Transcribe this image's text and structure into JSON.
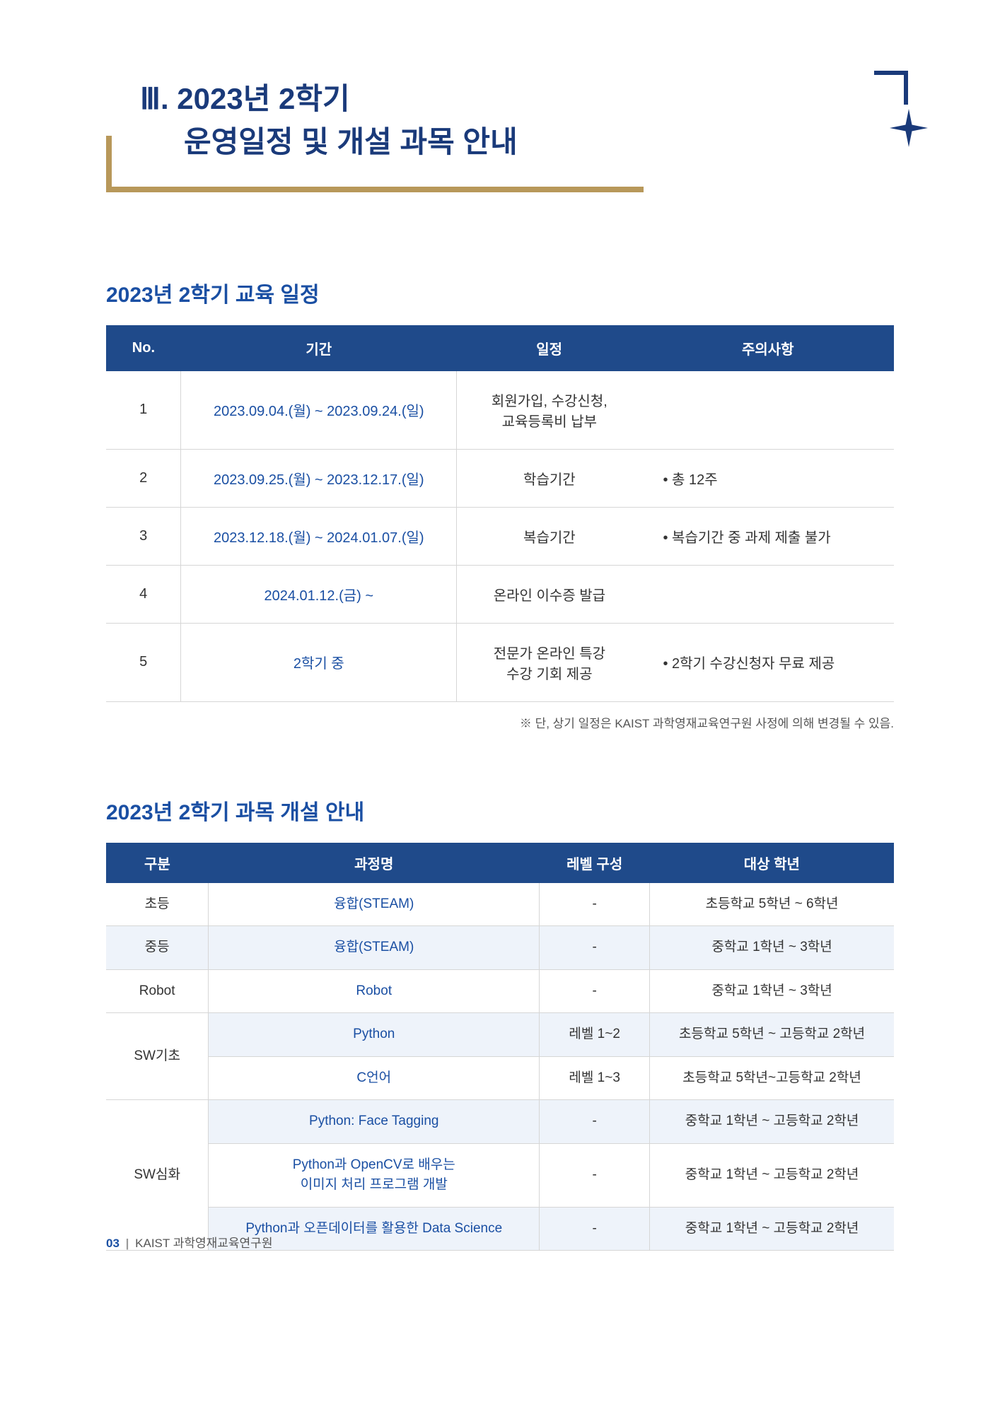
{
  "header": {
    "title_line1": "Ⅲ. 2023년 2학기",
    "title_line2": "운영일정 및 개설 과목 안내"
  },
  "schedule": {
    "section_title": "2023년 2학기 교육 일정",
    "columns": {
      "no": "No.",
      "period": "기간",
      "event": "일정",
      "note": "주의사항"
    },
    "rows": [
      {
        "no": "1",
        "period": "2023.09.04.(월) ~ 2023.09.24.(일)",
        "event": "회원가입, 수강신청,\n교육등록비 납부",
        "note": ""
      },
      {
        "no": "2",
        "period": "2023.09.25.(월) ~ 2023.12.17.(일)",
        "event": "학습기간",
        "note": "• 총 12주"
      },
      {
        "no": "3",
        "period": "2023.12.18.(월) ~ 2024.01.07.(일)",
        "event": "복습기간",
        "note": "• 복습기간 중 과제 제출 불가"
      },
      {
        "no": "4",
        "period": "2024.01.12.(금) ~",
        "event": "온라인 이수증 발급",
        "note": ""
      },
      {
        "no": "5",
        "period": "2학기 중",
        "event": "전문가 온라인 특강\n수강 기회 제공",
        "note": "• 2학기 수강신청자 무료 제공"
      }
    ],
    "footnote": "※ 단, 상기 일정은 KAIST 과학영재교육연구원 사정에 의해 변경될 수 있음."
  },
  "courses": {
    "section_title": "2023년 2학기 과목 개설 안내",
    "columns": {
      "cat": "구분",
      "course": "과정명",
      "level": "레벨 구성",
      "target": "대상 학년"
    },
    "rows": [
      {
        "cat": "초등",
        "course": "융합(STEAM)",
        "level": "-",
        "target": "초등학교 5학년 ~ 6학년",
        "alt": false
      },
      {
        "cat": "중등",
        "course": "융합(STEAM)",
        "level": "-",
        "target": "중학교 1학년 ~ 3학년",
        "alt": true
      },
      {
        "cat": "Robot",
        "course": "Robot",
        "level": "-",
        "target": "중학교 1학년 ~ 3학년",
        "alt": false
      },
      {
        "cat": "SW기초",
        "rowspan": 2,
        "course": "Python",
        "level": "레벨 1~2",
        "target": "초등학교 5학년 ~ 고등학교 2학년",
        "alt": true
      },
      {
        "course": "C언어",
        "level": "레벨 1~3",
        "target": "초등학교 5학년~고등학교 2학년",
        "alt": false
      },
      {
        "cat": "SW심화",
        "rowspan": 3,
        "course": "Python: Face Tagging",
        "level": "-",
        "target": "중학교 1학년 ~ 고등학교 2학년",
        "alt": true
      },
      {
        "course": "Python과 OpenCV로 배우는\n이미지 처리 프로그램 개발",
        "level": "-",
        "target": "중학교 1학년 ~ 고등학교 2학년",
        "alt": false
      },
      {
        "course": "Python과 오픈데이터를 활용한 Data Science",
        "level": "-",
        "target": "중학교 1학년 ~ 고등학교 2학년",
        "alt": true
      }
    ]
  },
  "footer": {
    "page": "03",
    "org": "KAIST 과학영재교육연구원"
  },
  "colors": {
    "navy": "#1f4a8a",
    "navy_dark": "#1a3a7a",
    "blue_text": "#1a4fa3",
    "gold": "#b8985a",
    "row_alt": "#eef3fa",
    "border": "#d6d6d6"
  }
}
